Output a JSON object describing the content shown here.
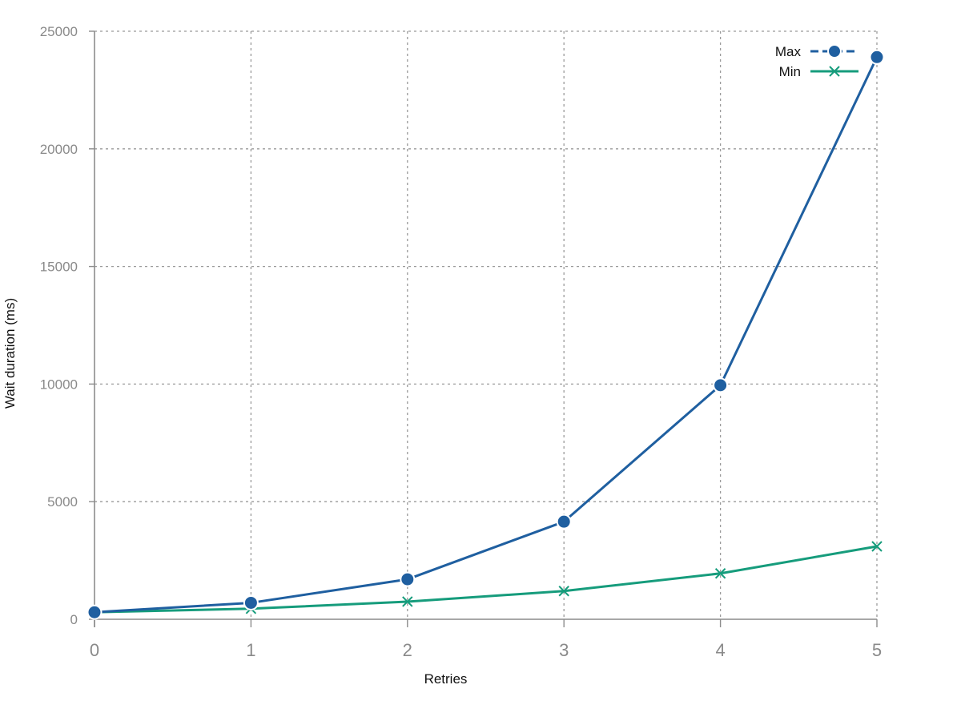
{
  "chart_data": {
    "type": "line",
    "title": "",
    "xlabel": "Retries",
    "ylabel": "Wait duration (ms)",
    "x": [
      0,
      1,
      2,
      3,
      4,
      5
    ],
    "xlim": [
      0,
      5
    ],
    "ylim": [
      0,
      25000
    ],
    "x_ticks": [
      "0",
      "1",
      "2",
      "3",
      "4",
      "5"
    ],
    "y_ticks": [
      "0",
      "5000",
      "10000",
      "15000",
      "20000",
      "25000"
    ],
    "grid": true,
    "legend_position": "top-right",
    "series": [
      {
        "name": "Max",
        "values": [
          300,
          700,
          1700,
          4150,
          9950,
          23900
        ],
        "color": "#1f5fa0",
        "marker": "circle",
        "legend_line": "dashed"
      },
      {
        "name": "Min",
        "values": [
          300,
          450,
          750,
          1200,
          1950,
          3100
        ],
        "color": "#169c7c",
        "marker": "x",
        "legend_line": "solid"
      }
    ]
  }
}
